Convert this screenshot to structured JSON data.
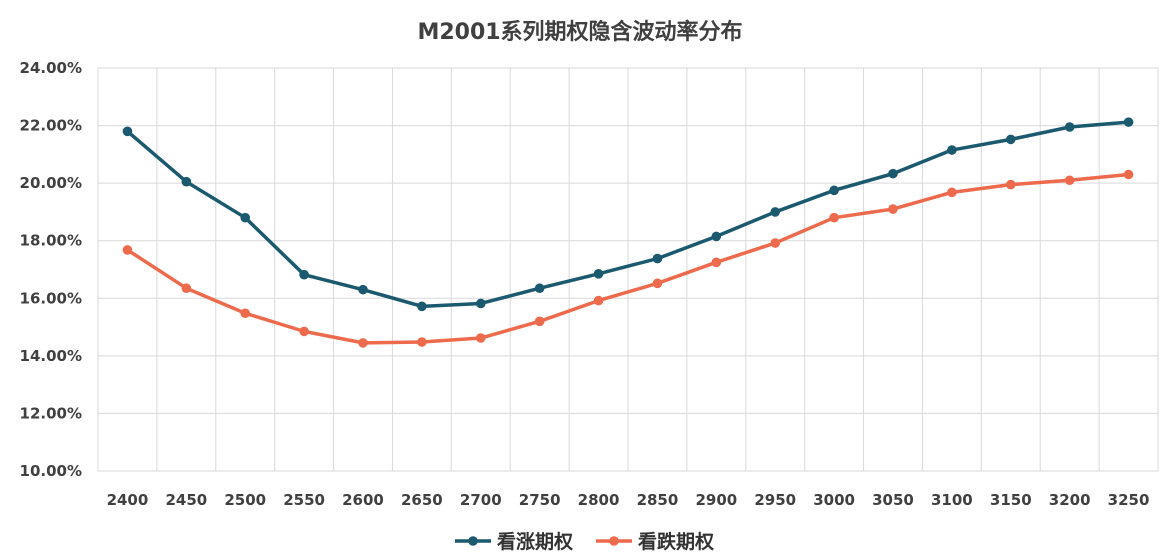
{
  "chart_data": {
    "type": "line",
    "title": "M2001系列期权隐含波动率分布",
    "xlabel": "",
    "ylabel": "",
    "categories": [
      "2400",
      "2450",
      "2500",
      "2550",
      "2600",
      "2650",
      "2700",
      "2750",
      "2800",
      "2850",
      "2900",
      "2950",
      "3000",
      "3050",
      "3100",
      "3150",
      "3200",
      "3250"
    ],
    "y_ticks": [
      "10.00%",
      "12.00%",
      "14.00%",
      "16.00%",
      "18.00%",
      "20.00%",
      "22.00%",
      "24.00%"
    ],
    "ylim": [
      10,
      24
    ],
    "grid": true,
    "legend_position": "bottom",
    "series": [
      {
        "name": "看涨期权",
        "color": "#1b5a6e",
        "values": [
          21.8,
          20.05,
          18.8,
          16.82,
          16.3,
          15.72,
          15.82,
          16.35,
          16.85,
          17.38,
          18.15,
          19.0,
          19.75,
          20.33,
          21.15,
          21.52,
          21.95,
          22.12
        ]
      },
      {
        "name": "看跌期权",
        "color": "#ee6a4d",
        "values": [
          17.68,
          16.35,
          15.48,
          14.85,
          14.45,
          14.48,
          14.62,
          15.2,
          15.92,
          16.52,
          17.25,
          17.92,
          18.8,
          19.1,
          19.68,
          19.95,
          20.1,
          20.3
        ]
      }
    ]
  }
}
